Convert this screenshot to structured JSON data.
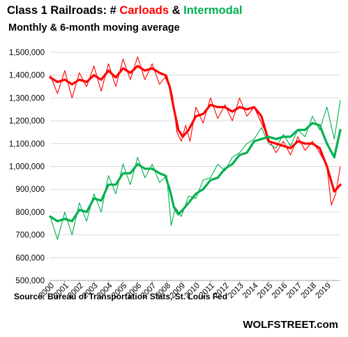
{
  "header": {
    "title_prefix": "Class 1 Railroads: # ",
    "title_carloads": "Carloads",
    "title_amp": " & ",
    "title_intermodal": "Intermodal",
    "subtitle": "Monthly & 6-month moving average"
  },
  "footer": {
    "source": "Source: Bureau of Transportation Stats, St. Louis Fed",
    "brand": "WOLFSTREET.com"
  },
  "chart_data": {
    "type": "line",
    "title": "Class 1 Railroads: # Carloads & Intermodal",
    "subtitle": "Monthly & 6-month moving average",
    "xlabel": "",
    "ylabel": "",
    "xlim": [
      2000,
      2019.917
    ],
    "ylim": [
      500000,
      1500000
    ],
    "x_ticks": [
      "2000",
      "2001",
      "2002",
      "2003",
      "2004",
      "2005",
      "2006",
      "2007",
      "2008",
      "2009",
      "2010",
      "2011",
      "2012",
      "2013",
      "2014",
      "2015",
      "2016",
      "2017",
      "2018",
      "2019"
    ],
    "y_ticks": [
      "500,000",
      "600,000",
      "700,000",
      "800,000",
      "900,000",
      "1,000,000",
      "1,100,000",
      "1,200,000",
      "1,300,000",
      "1,400,000",
      "1,500,000"
    ],
    "grid": "horizontal",
    "colors": {
      "carloads": "#ff0000",
      "intermodal": "#00b050"
    },
    "series": [
      {
        "name": "Carloads",
        "monthly": {
          "x": [
            2000.0,
            2000.5,
            2001.0,
            2001.5,
            2002.0,
            2002.5,
            2003.0,
            2003.5,
            2004.0,
            2004.5,
            2005.0,
            2005.5,
            2006.0,
            2006.5,
            2007.0,
            2007.5,
            2008.0,
            2008.4,
            2008.7,
            2009.0,
            2009.3,
            2009.6,
            2010.0,
            2010.5,
            2011.0,
            2011.5,
            2012.0,
            2012.5,
            2013.0,
            2013.5,
            2014.0,
            2014.5,
            2015.0,
            2015.5,
            2016.0,
            2016.5,
            2017.0,
            2017.5,
            2018.0,
            2018.5,
            2019.0,
            2019.3,
            2019.6,
            2019.917
          ],
          "y": [
            1400000,
            1320000,
            1420000,
            1300000,
            1410000,
            1350000,
            1440000,
            1330000,
            1450000,
            1350000,
            1470000,
            1380000,
            1480000,
            1380000,
            1450000,
            1360000,
            1400000,
            1310000,
            1150000,
            1110000,
            1180000,
            1110000,
            1260000,
            1190000,
            1300000,
            1210000,
            1270000,
            1200000,
            1300000,
            1220000,
            1260000,
            1190000,
            1120000,
            1060000,
            1110000,
            1050000,
            1130000,
            1070000,
            1110000,
            1060000,
            1000000,
            830000,
            880000,
            1000000
          ]
        },
        "avg": {
          "x": [
            2000.0,
            2000.5,
            2001.0,
            2001.5,
            2002.0,
            2002.5,
            2003.0,
            2003.5,
            2004.0,
            2004.5,
            2005.0,
            2005.5,
            2006.0,
            2006.5,
            2007.0,
            2007.5,
            2007.9,
            2008.2,
            2008.5,
            2008.8,
            2009.1,
            2009.5,
            2010.0,
            2010.5,
            2011.0,
            2011.5,
            2012.0,
            2012.5,
            2013.0,
            2013.5,
            2014.0,
            2014.5,
            2015.0,
            2015.5,
            2016.0,
            2016.5,
            2017.0,
            2017.5,
            2018.0,
            2018.5,
            2019.0,
            2019.5,
            2019.917
          ],
          "y": [
            1390000,
            1370000,
            1380000,
            1360000,
            1380000,
            1370000,
            1400000,
            1380000,
            1420000,
            1390000,
            1430000,
            1410000,
            1440000,
            1420000,
            1430000,
            1410000,
            1400000,
            1350000,
            1250000,
            1160000,
            1130000,
            1160000,
            1220000,
            1230000,
            1270000,
            1260000,
            1260000,
            1240000,
            1260000,
            1250000,
            1260000,
            1220000,
            1110000,
            1100000,
            1090000,
            1080000,
            1110000,
            1100000,
            1100000,
            1080000,
            1000000,
            890000,
            920000
          ]
        }
      },
      {
        "name": "Intermodal",
        "monthly": {
          "x": [
            2000.0,
            2000.5,
            2001.0,
            2001.5,
            2002.0,
            2002.5,
            2003.0,
            2003.5,
            2004.0,
            2004.5,
            2005.0,
            2005.5,
            2006.0,
            2006.5,
            2007.0,
            2007.5,
            2008.0,
            2008.3,
            2008.6,
            2009.0,
            2009.5,
            2010.0,
            2010.5,
            2011.0,
            2011.5,
            2012.0,
            2012.5,
            2013.0,
            2013.5,
            2014.0,
            2014.5,
            2015.0,
            2015.5,
            2016.0,
            2016.5,
            2017.0,
            2017.5,
            2018.0,
            2018.5,
            2019.0,
            2019.5,
            2019.917
          ],
          "y": [
            780000,
            680000,
            800000,
            700000,
            840000,
            760000,
            880000,
            800000,
            960000,
            880000,
            1010000,
            920000,
            1040000,
            950000,
            1010000,
            930000,
            960000,
            740000,
            820000,
            780000,
            870000,
            860000,
            940000,
            950000,
            1010000,
            980000,
            1040000,
            1060000,
            1100000,
            1120000,
            1170000,
            1100000,
            1080000,
            1140000,
            1090000,
            1160000,
            1130000,
            1220000,
            1160000,
            1260000,
            1120000,
            1290000
          ]
        },
        "avg": {
          "x": [
            2000.0,
            2000.5,
            2001.0,
            2001.5,
            2002.0,
            2002.5,
            2003.0,
            2003.5,
            2004.0,
            2004.5,
            2005.0,
            2005.5,
            2006.0,
            2006.5,
            2007.0,
            2007.5,
            2007.9,
            2008.2,
            2008.5,
            2008.8,
            2009.1,
            2009.5,
            2010.0,
            2010.5,
            2011.0,
            2011.5,
            2012.0,
            2012.5,
            2013.0,
            2013.5,
            2014.0,
            2014.5,
            2015.0,
            2015.5,
            2016.0,
            2016.5,
            2017.0,
            2017.5,
            2018.0,
            2018.5,
            2019.0,
            2019.5,
            2019.917
          ],
          "y": [
            780000,
            760000,
            770000,
            760000,
            810000,
            800000,
            860000,
            850000,
            920000,
            920000,
            970000,
            970000,
            1010000,
            990000,
            990000,
            970000,
            960000,
            900000,
            820000,
            790000,
            810000,
            840000,
            880000,
            900000,
            940000,
            950000,
            990000,
            1010000,
            1050000,
            1060000,
            1110000,
            1120000,
            1130000,
            1120000,
            1130000,
            1130000,
            1160000,
            1160000,
            1190000,
            1180000,
            1100000,
            1040000,
            1160000
          ]
        }
      }
    ]
  }
}
